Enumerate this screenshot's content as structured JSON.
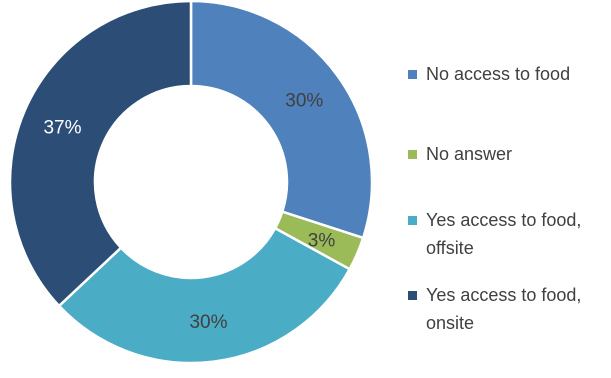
{
  "chart_data": {
    "type": "pie",
    "donut": true,
    "slices": [
      {
        "label": "No access to food",
        "value": 30,
        "display": "30%",
        "color": "#4f81bd"
      },
      {
        "label": "No answer",
        "value": 3,
        "display": "3%",
        "color": "#9bbb59"
      },
      {
        "label": "Yes access to food, offsite",
        "value": 30,
        "display": "30%",
        "color": "#4bacc6"
      },
      {
        "label": "Yes access to food, onsite",
        "value": 37,
        "display": "37%",
        "color": "#2c4d75"
      }
    ],
    "legend_position": "right",
    "label_color": "#404040"
  }
}
